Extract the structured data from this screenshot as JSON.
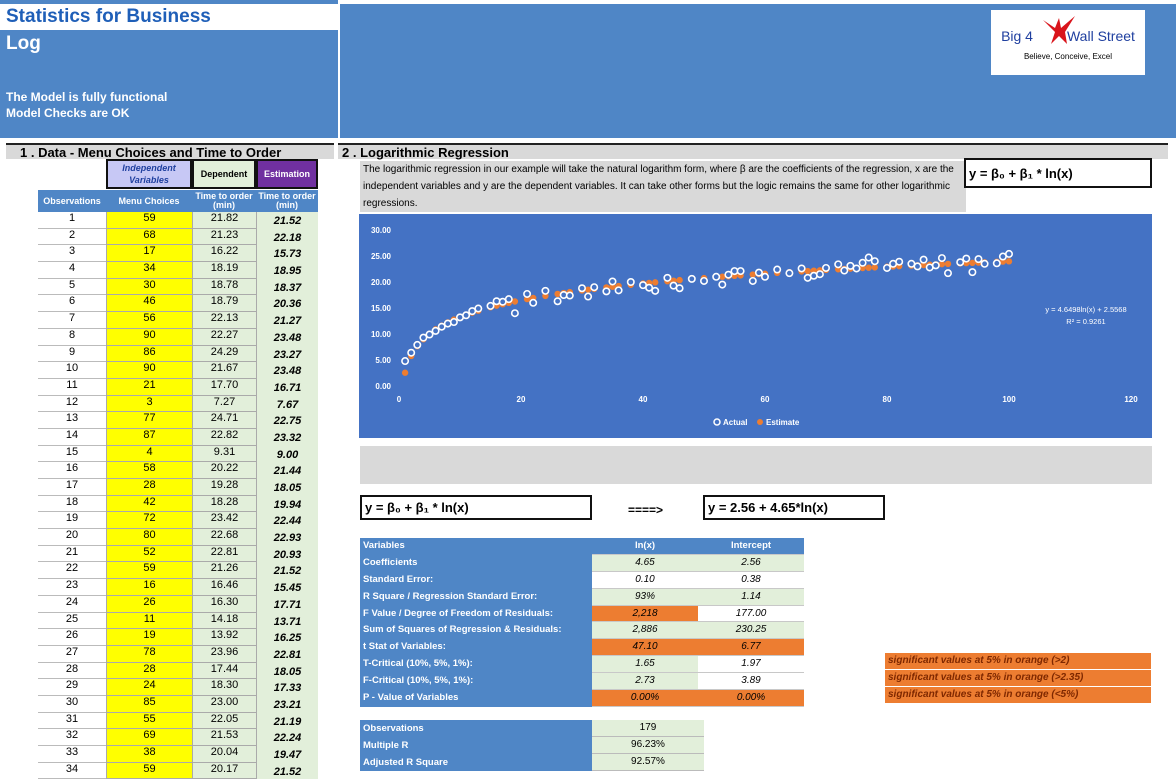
{
  "header": {
    "title": "Statistics for Business",
    "subtitle": "Log",
    "status_line_1": "The Model is fully functional",
    "status_line_2": "Model Checks are OK"
  },
  "logo": {
    "name_left": "Big 4",
    "name_right": "Wall Street",
    "tagline": "Believe, Conceive, Excel"
  },
  "sections": {
    "data": "1 . Data - Menu Choices and Time to Order",
    "regression": "2 . Logarithmic Regression"
  },
  "table": {
    "group_headers": {
      "independent": "Independent Variables",
      "dependent": "Dependent",
      "estimation": "Estimation"
    },
    "columns": {
      "obs": "Observations",
      "menu": "Menu Choices",
      "time": "Time to order (min)",
      "est": "Time to order (min)"
    },
    "rows": [
      [
        "1",
        "59",
        "21.82",
        "21.52"
      ],
      [
        "2",
        "68",
        "21.23",
        "22.18"
      ],
      [
        "3",
        "17",
        "16.22",
        "15.73"
      ],
      [
        "4",
        "34",
        "18.19",
        "18.95"
      ],
      [
        "5",
        "30",
        "18.78",
        "18.37"
      ],
      [
        "6",
        "46",
        "18.79",
        "20.36"
      ],
      [
        "7",
        "56",
        "22.13",
        "21.27"
      ],
      [
        "8",
        "90",
        "22.27",
        "23.48"
      ],
      [
        "9",
        "86",
        "24.29",
        "23.27"
      ],
      [
        "10",
        "90",
        "21.67",
        "23.48"
      ],
      [
        "11",
        "21",
        "17.70",
        "16.71"
      ],
      [
        "12",
        "3",
        "7.27",
        "7.67"
      ],
      [
        "13",
        "77",
        "24.71",
        "22.75"
      ],
      [
        "14",
        "87",
        "22.82",
        "23.32"
      ],
      [
        "15",
        "4",
        "9.31",
        "9.00"
      ],
      [
        "16",
        "58",
        "20.22",
        "21.44"
      ],
      [
        "17",
        "28",
        "19.28",
        "18.05"
      ],
      [
        "18",
        "42",
        "18.28",
        "19.94"
      ],
      [
        "19",
        "72",
        "23.42",
        "22.44"
      ],
      [
        "20",
        "80",
        "22.68",
        "22.93"
      ],
      [
        "21",
        "52",
        "22.81",
        "20.93"
      ],
      [
        "22",
        "59",
        "21.26",
        "21.52"
      ],
      [
        "23",
        "16",
        "16.46",
        "15.45"
      ],
      [
        "24",
        "26",
        "16.30",
        "17.71"
      ],
      [
        "25",
        "11",
        "14.18",
        "13.71"
      ],
      [
        "26",
        "19",
        "13.92",
        "16.25"
      ],
      [
        "27",
        "78",
        "23.96",
        "22.81"
      ],
      [
        "28",
        "28",
        "17.44",
        "18.05"
      ],
      [
        "29",
        "24",
        "18.30",
        "17.33"
      ],
      [
        "30",
        "85",
        "23.00",
        "23.21"
      ],
      [
        "31",
        "55",
        "22.05",
        "21.19"
      ],
      [
        "32",
        "69",
        "21.53",
        "22.24"
      ],
      [
        "33",
        "38",
        "20.04",
        "19.47"
      ],
      [
        "34",
        "59",
        "20.17",
        "21.52"
      ]
    ]
  },
  "description": "The logarithmic regression in our example will take the natural logarithm form, where β are the coefficients of the regression, x are the independent variables and y are the dependent variables. It can take other forms but the logic remains the same for other logarithmic regressions.",
  "equation_top": "y = β₀ + β₁ * ln(x)",
  "equation_left": "y = β₀ + β₁ * ln(x)",
  "arrow": "====>",
  "equation_fit": "y = 2.56 + 4.65*ln(x)",
  "chart_data": {
    "type": "scatter",
    "xlim": [
      0,
      120
    ],
    "ylim": [
      0,
      30
    ],
    "xticks": [
      "0",
      "20",
      "40",
      "60",
      "80",
      "100",
      "120"
    ],
    "yticks": [
      "0.00",
      "5.00",
      "10.00",
      "15.00",
      "20.00",
      "25.00",
      "30.00"
    ],
    "trend_label_1": "y = 4.6498ln(x) + 2.5568",
    "trend_label_2": "R² = 0.9261",
    "legend": [
      "Actual",
      "Estimate"
    ],
    "legend_position": "bottom",
    "colors": {
      "background": "#4472c4",
      "actual": "#ffffff",
      "estimate": "#ed7d31"
    },
    "series": [
      {
        "name": "Actual",
        "x": [
          1,
          2,
          3,
          4,
          5,
          6,
          7,
          8,
          9,
          10,
          11,
          12,
          13,
          15,
          16,
          17,
          18,
          19,
          21,
          22,
          24,
          26,
          27,
          28,
          30,
          31,
          32,
          34,
          35,
          36,
          38,
          40,
          41,
          42,
          44,
          45,
          46,
          48,
          50,
          52,
          53,
          54,
          55,
          56,
          58,
          59,
          60,
          62,
          64,
          66,
          67,
          68,
          69,
          70,
          72,
          73,
          74,
          75,
          76,
          77,
          78,
          80,
          81,
          82,
          84,
          85,
          86,
          87,
          88,
          89,
          90,
          92,
          93,
          94,
          95,
          96,
          98,
          99,
          100
        ],
        "y": [
          4.8,
          6.4,
          7.9,
          9.3,
          9.9,
          10.6,
          11.4,
          12.0,
          12.3,
          13.2,
          13.6,
          14.4,
          14.9,
          15.4,
          16.3,
          16.2,
          16.7,
          14.0,
          17.7,
          16.0,
          18.3,
          16.3,
          17.5,
          17.4,
          18.8,
          17.2,
          19.0,
          18.2,
          20.1,
          18.4,
          20.0,
          19.4,
          18.9,
          18.3,
          20.8,
          19.3,
          18.8,
          20.6,
          20.2,
          21.0,
          19.5,
          21.4,
          22.1,
          22.1,
          20.2,
          21.8,
          21.0,
          22.4,
          21.7,
          22.6,
          20.8,
          21.2,
          21.5,
          22.7,
          23.4,
          22.2,
          23.1,
          22.6,
          23.7,
          24.7,
          24.0,
          22.7,
          23.5,
          23.9,
          23.5,
          23.0,
          24.3,
          22.8,
          23.2,
          24.6,
          21.7,
          23.8,
          24.5,
          21.9,
          24.4,
          23.5,
          23.6,
          24.9,
          25.4
        ]
      },
      {
        "name": "Estimate",
        "function": "2.5568 + 4.6498*ln(x)"
      }
    ]
  },
  "stats": {
    "header": [
      "Variables",
      "ln(x)",
      "Intercept"
    ],
    "rows": [
      {
        "label": "Coefficients",
        "a": "4.65",
        "b": "2.56",
        "style_a": "green",
        "style_b": "green"
      },
      {
        "label": "Standard Error:",
        "a": "0.10",
        "b": "0.38",
        "style_a": "white",
        "style_b": "white"
      },
      {
        "label": "R Square / Regression Standard Error:",
        "a": "93%",
        "b": "1.14",
        "style_a": "green",
        "style_b": "green"
      },
      {
        "label": "F Value / Degree of Freedom of Residuals:",
        "a": "2,218",
        "b": "177.00",
        "style_a": "orange",
        "style_b": "white"
      },
      {
        "label": "Sum of Squares of Regression & Residuals:",
        "a": "2,886",
        "b": "230.25",
        "style_a": "green",
        "style_b": "green"
      },
      {
        "label": "t Stat of Variables:",
        "a": "47.10",
        "b": "6.77",
        "style_a": "orange",
        "style_b": "orange"
      },
      {
        "label": "T-Critical (10%, 5%, 1%):",
        "a": "1.65",
        "b": "1.97",
        "style_a": "green",
        "style_b": "white"
      },
      {
        "label": "F-Critical (10%, 5%, 1%):",
        "a": "2.73",
        "b": "3.89",
        "style_a": "green",
        "style_b": "white"
      },
      {
        "label": "P - Value of Variables",
        "a": "0.00%",
        "b": "0.00%",
        "style_a": "orange",
        "style_b": "orange"
      }
    ]
  },
  "notes": [
    "significant values at 5% in orange (>2)",
    "significant values at 5% in orange (>2.35)",
    "significant values at 5% in orange (<5%)"
  ],
  "summary": [
    {
      "label": "Observations",
      "value": "179"
    },
    {
      "label": "Multiple R",
      "value": "96.23%"
    },
    {
      "label": "Adjusted R Square",
      "value": "92.57%"
    }
  ]
}
